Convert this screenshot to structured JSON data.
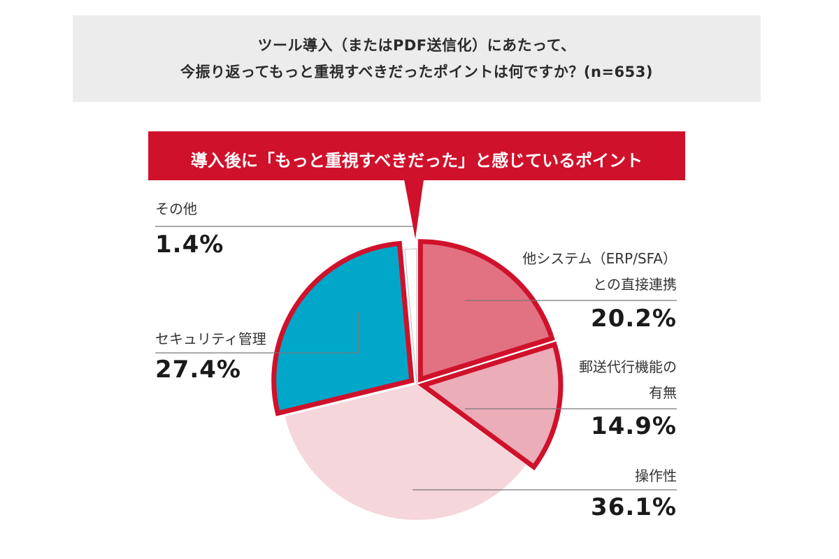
{
  "question": {
    "line1": "ツール導入（またはPDF送信化）にあたって、",
    "line2": "今振り返ってもっと重視すべきだったポイントは何ですか？(n=653)"
  },
  "banner": {
    "text": "導入後に「もっと重視すべきだった」と感じているポイント"
  },
  "colors": {
    "accent_red": "#d0112b",
    "slice_erp": "#e27282",
    "slice_mail": "#ebadb7",
    "slice_ops": "#f5d6da",
    "slice_security": "#00a7c9",
    "slice_other": "#ffffff"
  },
  "chart_data": {
    "type": "pie",
    "start": "12 o'clock, clockwise",
    "slices": [
      {
        "label": "他システム（ERP/SFA）との直接連携",
        "value": 20.2,
        "value_label": "20.2%",
        "highlighted": true
      },
      {
        "label": "郵送代行機能の有無",
        "value": 14.9,
        "value_label": "14.9%",
        "highlighted": true
      },
      {
        "label": "操作性",
        "value": 36.1,
        "value_label": "36.1%",
        "highlighted": false
      },
      {
        "label": "セキュリティ管理",
        "value": 27.4,
        "value_label": "27.4%",
        "highlighted": true
      },
      {
        "label": "その他",
        "value": 1.4,
        "value_label": "1.4%",
        "highlighted": false
      }
    ],
    "label_lines": {
      "erp_line1": "他システム（ERP/SFA）",
      "erp_line2": "との直接連携",
      "mail_line1": "郵送代行機能の",
      "mail_line2": "有無",
      "ops": "操作性",
      "security": "セキュリティ管理",
      "other": "その他"
    }
  }
}
